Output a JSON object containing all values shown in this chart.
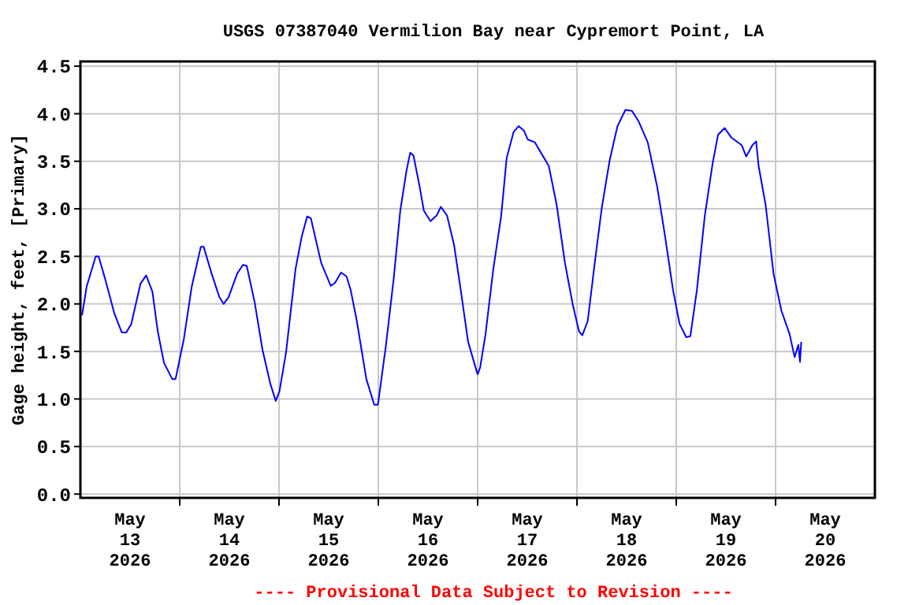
{
  "chart_data": {
    "type": "line",
    "title": "USGS 07387040 Vermilion Bay near Cypremort Point, LA",
    "ylabel": "Gage height, feet, [Primary]",
    "annotations": [
      "---- Provisional Data Subject to Revision ----"
    ],
    "x": [
      "2026-05-13T00:24",
      "2026-05-13T01:30",
      "2026-05-13T03:42",
      "2026-05-13T04:24",
      "2026-05-13T06:00",
      "2026-05-13T08:12",
      "2026-05-13T10:00",
      "2026-05-13T11:06",
      "2026-05-13T12:18",
      "2026-05-13T14:30",
      "2026-05-13T15:54",
      "2026-05-13T17:24",
      "2026-05-13T18:42",
      "2026-05-13T20:12",
      "2026-05-13T22:12",
      "2026-05-13T23:00",
      "2026-05-14T01:00",
      "2026-05-14T02:54",
      "2026-05-14T05:06",
      "2026-05-14T05:48",
      "2026-05-14T07:42",
      "2026-05-14T09:36",
      "2026-05-14T10:36",
      "2026-05-14T11:48",
      "2026-05-14T13:54",
      "2026-05-14T15:18",
      "2026-05-14T16:12",
      "2026-05-14T18:06",
      "2026-05-14T20:00",
      "2026-05-14T21:54",
      "2026-05-14T23:12",
      "2026-05-15T00:06",
      "2026-05-15T01:42",
      "2026-05-15T04:00",
      "2026-05-15T05:30",
      "2026-05-15T06:48",
      "2026-05-15T07:42",
      "2026-05-15T08:42",
      "2026-05-15T10:12",
      "2026-05-15T12:30",
      "2026-05-15T13:30",
      "2026-05-15T15:00",
      "2026-05-15T16:18",
      "2026-05-15T17:18",
      "2026-05-15T18:48",
      "2026-05-15T21:06",
      "2026-05-15T23:00",
      "2026-05-15T23:54",
      "2026-05-16T01:48",
      "2026-05-16T03:42",
      "2026-05-16T05:18",
      "2026-05-16T06:48",
      "2026-05-16T07:42",
      "2026-05-16T08:30",
      "2026-05-16T10:00",
      "2026-05-16T11:00",
      "2026-05-16T12:36",
      "2026-05-16T14:06",
      "2026-05-16T15:06",
      "2026-05-16T16:36",
      "2026-05-16T18:18",
      "2026-05-16T19:54",
      "2026-05-16T21:42",
      "2026-05-16T23:30",
      "2026-05-17T00:00",
      "2026-05-17T00:36",
      "2026-05-17T01:54",
      "2026-05-17T03:48",
      "2026-05-17T05:42",
      "2026-05-17T07:00",
      "2026-05-17T08:42",
      "2026-05-17T09:54",
      "2026-05-17T11:12",
      "2026-05-17T12:06",
      "2026-05-17T13:48",
      "2026-05-17T15:18",
      "2026-05-17T17:12",
      "2026-05-17T19:06",
      "2026-05-17T21:06",
      "2026-05-17T23:00",
      "2026-05-18T00:30",
      "2026-05-18T01:18",
      "2026-05-18T02:36",
      "2026-05-18T04:18",
      "2026-05-18T06:00",
      "2026-05-18T07:54",
      "2026-05-18T09:48",
      "2026-05-18T11:42",
      "2026-05-18T13:18",
      "2026-05-18T14:54",
      "2026-05-18T17:06",
      "2026-05-18T19:24",
      "2026-05-18T21:18",
      "2026-05-18T23:12",
      "2026-05-19T00:48",
      "2026-05-19T02:24",
      "2026-05-19T03:24",
      "2026-05-19T05:00",
      "2026-05-19T06:54",
      "2026-05-19T08:48",
      "2026-05-19T10:06",
      "2026-05-19T11:42",
      "2026-05-19T13:18",
      "2026-05-19T15:48",
      "2026-05-19T16:54",
      "2026-05-19T18:24",
      "2026-05-19T19:18",
      "2026-05-19T19:54",
      "2026-05-19T21:36",
      "2026-05-19T23:30",
      "2026-05-20T01:24",
      "2026-05-20T03:24",
      "2026-05-20T04:36",
      "2026-05-20T05:30",
      "2026-05-20T05:54",
      "2026-05-20T06:12"
    ],
    "series": [
      {
        "color": "#0000ff",
        "values": [
          1.88,
          2.18,
          2.5,
          2.5,
          2.26,
          1.9,
          1.7,
          1.7,
          1.79,
          2.21,
          2.3,
          2.13,
          1.71,
          1.38,
          1.21,
          1.21,
          1.63,
          2.18,
          2.6,
          2.6,
          2.32,
          2.07,
          2.0,
          2.07,
          2.32,
          2.41,
          2.4,
          2.02,
          1.52,
          1.16,
          0.98,
          1.08,
          1.49,
          2.37,
          2.71,
          2.92,
          2.9,
          2.71,
          2.43,
          2.19,
          2.22,
          2.33,
          2.29,
          2.15,
          1.82,
          1.21,
          0.94,
          0.94,
          1.55,
          2.26,
          2.98,
          3.4,
          3.59,
          3.56,
          3.23,
          2.98,
          2.87,
          2.93,
          3.02,
          2.93,
          2.62,
          2.15,
          1.6,
          1.33,
          1.26,
          1.33,
          1.68,
          2.37,
          2.93,
          3.53,
          3.81,
          3.87,
          3.82,
          3.73,
          3.7,
          3.59,
          3.45,
          3.04,
          2.43,
          1.99,
          1.71,
          1.67,
          1.82,
          2.43,
          3.01,
          3.51,
          3.87,
          4.04,
          4.03,
          3.92,
          3.7,
          3.23,
          2.71,
          2.15,
          1.79,
          1.65,
          1.66,
          2.15,
          2.93,
          3.48,
          3.78,
          3.85,
          3.75,
          3.67,
          3.55,
          3.67,
          3.71,
          3.45,
          3.04,
          2.32,
          1.93,
          1.68,
          1.44,
          1.57,
          1.39,
          1.6
        ]
      }
    ],
    "xlim": [
      "2026-05-13T00:00",
      "2026-05-21T00:00"
    ],
    "xticks": [
      {
        "value": "2026-05-13T12:00",
        "label": "May\n13\n2026"
      },
      {
        "value": "2026-05-14T00:00",
        "label": null
      },
      {
        "value": "2026-05-14T12:00",
        "label": "May\n14\n2026"
      },
      {
        "value": "2026-05-15T00:00",
        "label": null
      },
      {
        "value": "2026-05-15T12:00",
        "label": "May\n15\n2026"
      },
      {
        "value": "2026-05-16T00:00",
        "label": null
      },
      {
        "value": "2026-05-16T12:00",
        "label": "May\n16\n2026"
      },
      {
        "value": "2026-05-17T00:00",
        "label": null
      },
      {
        "value": "2026-05-17T12:00",
        "label": "May\n17\n2026"
      },
      {
        "value": "2026-05-18T00:00",
        "label": null
      },
      {
        "value": "2026-05-18T12:00",
        "label": "May\n18\n2026"
      },
      {
        "value": "2026-05-19T00:00",
        "label": null
      },
      {
        "value": "2026-05-19T12:00",
        "label": "May\n19\n2026"
      },
      {
        "value": "2026-05-20T00:00",
        "label": null
      },
      {
        "value": "2026-05-20T12:00",
        "label": "May\n20\n2026"
      }
    ],
    "ylim": [
      -0.04,
      4.55
    ],
    "yticks": [
      {
        "value": 0,
        "label": "0.0"
      },
      {
        "value": 0.5,
        "label": "0.5"
      },
      {
        "value": 1,
        "label": "1.0"
      },
      {
        "value": 1.5,
        "label": "1.5"
      },
      {
        "value": 2,
        "label": "2.0"
      },
      {
        "value": 2.5,
        "label": "2.5"
      },
      {
        "value": 3,
        "label": "3.0"
      },
      {
        "value": 3.5,
        "label": "3.5"
      },
      {
        "value": 4,
        "label": "4.0"
      },
      {
        "value": 4.5,
        "label": "4.5"
      }
    ],
    "grid": true,
    "marker": "none",
    "line_style": "solid"
  }
}
